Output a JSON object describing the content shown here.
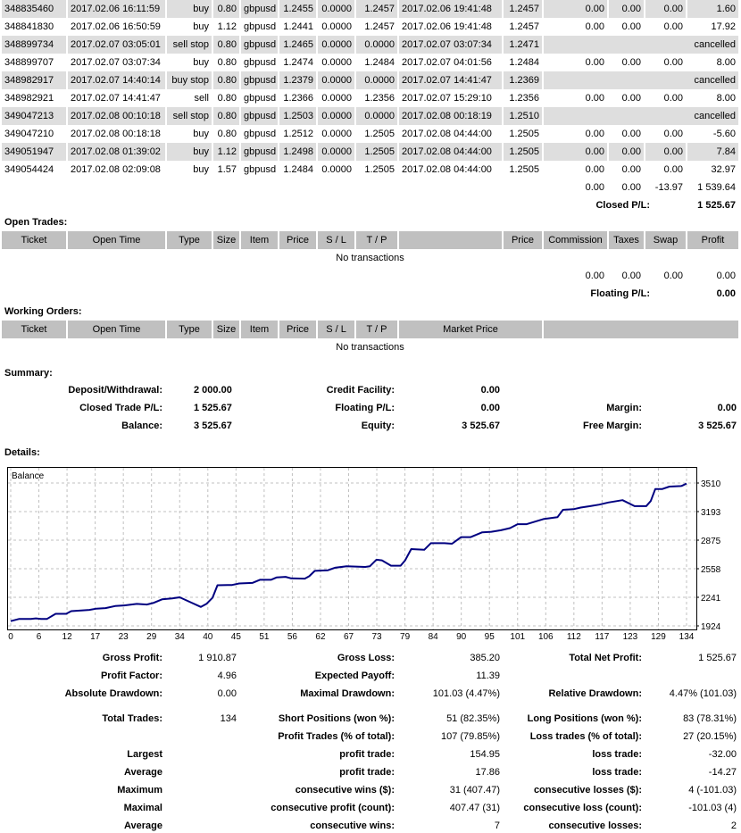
{
  "closed_trades": {
    "rows": [
      {
        "ticket": "348835460",
        "open_time": "2017.02.06 16:11:59",
        "type": "buy",
        "size": "0.80",
        "item": "gbpusd",
        "price": "1.2455",
        "sl": "0.0000",
        "tp": "1.2457",
        "close_time": "2017.02.06 19:41:48",
        "close_price": "1.2457",
        "commission": "0.00",
        "taxes": "0.00",
        "swap": "0.00",
        "profit": "1.60"
      },
      {
        "ticket": "348841830",
        "open_time": "2017.02.06 16:50:59",
        "type": "buy",
        "size": "1.12",
        "item": "gbpusd",
        "price": "1.2441",
        "sl": "0.0000",
        "tp": "1.2457",
        "close_time": "2017.02.06 19:41:48",
        "close_price": "1.2457",
        "commission": "0.00",
        "taxes": "0.00",
        "swap": "0.00",
        "profit": "17.92"
      },
      {
        "ticket": "348899734",
        "open_time": "2017.02.07 03:05:01",
        "type": "sell stop",
        "size": "0.80",
        "item": "gbpusd",
        "price": "1.2465",
        "sl": "0.0000",
        "tp": "0.0000",
        "close_time": "2017.02.07 03:07:34",
        "close_price": "1.2471",
        "status": "cancelled"
      },
      {
        "ticket": "348899707",
        "open_time": "2017.02.07 03:07:34",
        "type": "buy",
        "size": "0.80",
        "item": "gbpusd",
        "price": "1.2474",
        "sl": "0.0000",
        "tp": "1.2484",
        "close_time": "2017.02.07 04:01:56",
        "close_price": "1.2484",
        "commission": "0.00",
        "taxes": "0.00",
        "swap": "0.00",
        "profit": "8.00"
      },
      {
        "ticket": "348982917",
        "open_time": "2017.02.07 14:40:14",
        "type": "buy stop",
        "size": "0.80",
        "item": "gbpusd",
        "price": "1.2379",
        "sl": "0.0000",
        "tp": "0.0000",
        "close_time": "2017.02.07 14:41:47",
        "close_price": "1.2369",
        "status": "cancelled"
      },
      {
        "ticket": "348982921",
        "open_time": "2017.02.07 14:41:47",
        "type": "sell",
        "size": "0.80",
        "item": "gbpusd",
        "price": "1.2366",
        "sl": "0.0000",
        "tp": "1.2356",
        "close_time": "2017.02.07 15:29:10",
        "close_price": "1.2356",
        "commission": "0.00",
        "taxes": "0.00",
        "swap": "0.00",
        "profit": "8.00"
      },
      {
        "ticket": "349047213",
        "open_time": "2017.02.08 00:10:18",
        "type": "sell stop",
        "size": "0.80",
        "item": "gbpusd",
        "price": "1.2503",
        "sl": "0.0000",
        "tp": "0.0000",
        "close_time": "2017.02.08 00:18:19",
        "close_price": "1.2510",
        "status": "cancelled"
      },
      {
        "ticket": "349047210",
        "open_time": "2017.02.08 00:18:18",
        "type": "buy",
        "size": "0.80",
        "item": "gbpusd",
        "price": "1.2512",
        "sl": "0.0000",
        "tp": "1.2505",
        "close_time": "2017.02.08 04:44:00",
        "close_price": "1.2505",
        "commission": "0.00",
        "taxes": "0.00",
        "swap": "0.00",
        "profit": "-5.60"
      },
      {
        "ticket": "349051947",
        "open_time": "2017.02.08 01:39:02",
        "type": "buy",
        "size": "1.12",
        "item": "gbpusd",
        "price": "1.2498",
        "sl": "0.0000",
        "tp": "1.2505",
        "close_time": "2017.02.08 04:44:00",
        "close_price": "1.2505",
        "commission": "0.00",
        "taxes": "0.00",
        "swap": "0.00",
        "profit": "7.84"
      },
      {
        "ticket": "349054424",
        "open_time": "2017.02.08 02:09:08",
        "type": "buy",
        "size": "1.57",
        "item": "gbpusd",
        "price": "1.2484",
        "sl": "0.0000",
        "tp": "1.2505",
        "close_time": "2017.02.08 04:44:00",
        "close_price": "1.2505",
        "commission": "0.00",
        "taxes": "0.00",
        "swap": "0.00",
        "profit": "32.97"
      }
    ],
    "totals": {
      "commission": "0.00",
      "taxes": "0.00",
      "swap": "-13.97",
      "profit": "1 539.64"
    },
    "pl_label": "Closed P/L:",
    "pl_value": "1 525.67"
  },
  "open_trades": {
    "title": "Open Trades:",
    "headers": [
      "Ticket",
      "Open Time",
      "Type",
      "Size",
      "Item",
      "Price",
      "S / L",
      "T / P",
      "",
      "Price",
      "Commission",
      "Taxes",
      "Swap",
      "Profit"
    ],
    "empty": "No transactions",
    "totals": {
      "commission": "0.00",
      "taxes": "0.00",
      "swap": "0.00",
      "profit": "0.00"
    },
    "pl_label": "Floating P/L:",
    "pl_value": "0.00"
  },
  "working_orders": {
    "title": "Working Orders:",
    "headers": [
      "Ticket",
      "Open Time",
      "Type",
      "Size",
      "Item",
      "Price",
      "S / L",
      "T / P",
      "Market Price",
      ""
    ],
    "empty": "No transactions"
  },
  "summary": {
    "title": "Summary:",
    "deposit_label": "Deposit/Withdrawal:",
    "deposit": "2 000.00",
    "credit_label": "Credit Facility:",
    "credit": "0.00",
    "closed_pl_label": "Closed Trade P/L:",
    "closed_pl": "1 525.67",
    "floating_label": "Floating P/L:",
    "floating": "0.00",
    "margin_label": "Margin:",
    "margin": "0.00",
    "balance_label": "Balance:",
    "balance": "3 525.67",
    "equity_label": "Equity:",
    "equity": "3 525.67",
    "free_margin_label": "Free Margin:",
    "free_margin": "3 525.67"
  },
  "details": {
    "title": "Details:"
  },
  "chart_data": {
    "type": "line",
    "title": "Balance",
    "xlabel": "",
    "ylabel": "",
    "xlim": [
      0,
      134
    ],
    "ylim": [
      1924,
      3510
    ],
    "x_ticks": [
      "0",
      "6",
      "12",
      "17",
      "23",
      "29",
      "34",
      "40",
      "45",
      "51",
      "56",
      "62",
      "67",
      "73",
      "79",
      "84",
      "90",
      "95",
      "101",
      "106",
      "112",
      "117",
      "123",
      "129",
      "134"
    ],
    "y_ticks": [
      "3510",
      "3193",
      "2875",
      "2558",
      "2241",
      "1924"
    ],
    "grid": true,
    "color": "#000080",
    "series": [
      {
        "name": "Balance",
        "x": [
          0,
          1.7,
          4,
          5,
          6,
          7.2,
          8.9,
          11,
          12,
          14,
          15.6,
          17,
          18.8,
          20.7,
          22.5,
          25,
          27,
          28.4,
          30,
          32,
          33.5,
          35.5,
          37.7,
          38.8,
          40,
          41,
          43.9,
          45.3,
          47.9,
          49.4,
          51.6,
          52.7,
          54.5,
          55.6,
          58.3,
          59.2,
          60.3,
          62.9,
          64.3,
          66.6,
          70.3,
          71.2,
          72.5,
          73.6,
          75.4,
          77.3,
          78.2,
          79.4,
          82,
          83.3,
          86,
          87.5,
          89.3,
          91.2,
          93.5,
          95.3,
          97.2,
          99,
          100.5,
          102.3,
          103.7,
          105.6,
          108.4,
          109.5,
          111.6,
          113,
          114.9,
          116.7,
          118.5,
          121.3,
          123.7,
          126,
          126.9,
          127.8,
          129.2,
          130.6,
          133,
          134
        ],
        "y": [
          1977,
          2001,
          2001,
          2007,
          2001,
          2001,
          2058,
          2058,
          2088,
          2095,
          2101,
          2115,
          2121,
          2144,
          2151,
          2168,
          2161,
          2181,
          2218,
          2228,
          2241,
          2191,
          2134,
          2168,
          2235,
          2375,
          2378,
          2395,
          2401,
          2435,
          2435,
          2461,
          2468,
          2451,
          2448,
          2475,
          2535,
          2542,
          2569,
          2585,
          2578,
          2585,
          2659,
          2652,
          2592,
          2592,
          2652,
          2776,
          2769,
          2842,
          2842,
          2836,
          2909,
          2909,
          2963,
          2969,
          2986,
          3009,
          3053,
          3053,
          3077,
          3110,
          3130,
          3213,
          3220,
          3237,
          3253,
          3270,
          3294,
          3320,
          3253,
          3253,
          3310,
          3444,
          3444,
          3470,
          3477,
          3504
        ]
      }
    ]
  },
  "stats": {
    "gross_profit_label": "Gross Profit:",
    "gross_profit": "1 910.87",
    "gross_loss_label": "Gross Loss:",
    "gross_loss": "385.20",
    "total_net_label": "Total Net Profit:",
    "total_net": "1 525.67",
    "profit_factor_label": "Profit Factor:",
    "profit_factor": "4.96",
    "expected_payoff_label": "Expected Payoff:",
    "expected_payoff": "11.39",
    "abs_dd_label": "Absolute Drawdown:",
    "abs_dd": "0.00",
    "max_dd_label": "Maximal Drawdown:",
    "max_dd": "101.03 (4.47%)",
    "rel_dd_label": "Relative Drawdown:",
    "rel_dd": "4.47% (101.03)",
    "total_trades_label": "Total Trades:",
    "total_trades": "134",
    "short_label": "Short Positions (won %):",
    "short": "51 (82.35%)",
    "long_label": "Long Positions (won %):",
    "long": "83 (78.31%)",
    "profit_trades_label": "Profit Trades (% of total):",
    "profit_trades": "107 (79.85%)",
    "loss_trades_label": "Loss trades (% of total):",
    "loss_trades": "27 (20.15%)",
    "largest_label": "Largest",
    "largest_profit_label": "profit trade:",
    "largest_profit": "154.95",
    "largest_loss_label": "loss trade:",
    "largest_loss": "-32.00",
    "average_label": "Average",
    "average_profit_label": "profit trade:",
    "average_profit": "17.86",
    "average_loss_label": "loss trade:",
    "average_loss": "-14.27",
    "maximum_label": "Maximum",
    "max_cons_wins_label": "consecutive wins ($):",
    "max_cons_wins": "31 (407.47)",
    "max_cons_losses_label": "consecutive losses ($):",
    "max_cons_losses": "4 (-101.03)",
    "maximal_label": "Maximal",
    "maximal_profit_label": "consecutive profit (count):",
    "maximal_profit": "407.47 (31)",
    "maximal_loss_label": "consecutive loss (count):",
    "maximal_loss": "-101.03 (4)",
    "avg_cons_label": "Average",
    "avg_cons_wins_label": "consecutive wins:",
    "avg_cons_wins": "7",
    "avg_cons_losses_label": "consecutive losses:",
    "avg_cons_losses": "2"
  }
}
